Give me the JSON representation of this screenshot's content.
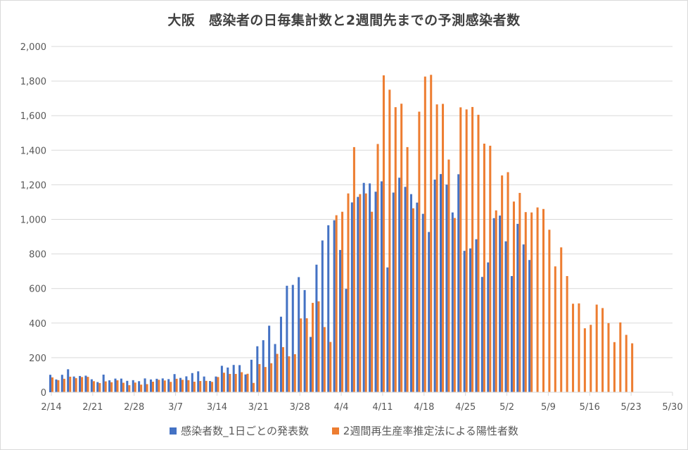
{
  "chart_data": {
    "type": "bar",
    "title": "大阪　感染者の日毎集計数と2週間先までの予測感染者数",
    "xlabel": "",
    "ylabel": "",
    "ylim": [
      0,
      2000
    ],
    "y_ticks": [
      "0",
      "200",
      "400",
      "600",
      "800",
      "1,000",
      "1,200",
      "1,400",
      "1,600",
      "1,800",
      "2,000"
    ],
    "x_tick_labels": [
      "2/14",
      "2/21",
      "2/28",
      "3/7",
      "3/14",
      "3/21",
      "3/28",
      "4/4",
      "4/11",
      "4/18",
      "4/25",
      "5/2",
      "5/9",
      "5/16",
      "5/23",
      "5/30"
    ],
    "x_start": "2/14",
    "x_end": "5/30",
    "grid": true,
    "legend_position": "bottom",
    "series": [
      {
        "name": "感染者数_1日ごとの発表数",
        "color": "#4472C4",
        "start": "2/14",
        "values": [
          101,
          74,
          101,
          133,
          91,
          94,
          96,
          75,
          59,
          102,
          69,
          79,
          79,
          66,
          70,
          64,
          80,
          74,
          78,
          80,
          76,
          105,
          83,
          92,
          111,
          121,
          91,
          65,
          91,
          153,
          143,
          158,
          157,
          103,
          188,
          266,
          301,
          385,
          279,
          437,
          616,
          621,
          666,
          591,
          320,
          738,
          878,
          966,
          995,
          823,
          598,
          1098,
          1130,
          1211,
          1208,
          1160,
          1220,
          722,
          1155,
          1241,
          1188,
          1146,
          1097,
          1032,
          927,
          1230,
          1262,
          1201,
          1040,
          1261,
          818,
          832,
          885,
          667,
          751,
          1007,
          1022,
          873,
          672,
          974,
          855,
          765
        ]
      },
      {
        "name": "2週間再生産率推定法による陽性者数",
        "color": "#ED7D31",
        "start": "2/14",
        "values": [
          86,
          70,
          78,
          90,
          82,
          88,
          89,
          64,
          53,
          63,
          58,
          69,
          55,
          41,
          56,
          44,
          47,
          61,
          72,
          68,
          60,
          78,
          72,
          70,
          61,
          65,
          66,
          60,
          88,
          113,
          106,
          106,
          116,
          107,
          54,
          163,
          146,
          168,
          222,
          261,
          208,
          220,
          427,
          428,
          517,
          526,
          377,
          291,
          1024,
          1044,
          1150,
          1418,
          1146,
          1150,
          1044,
          1436,
          1833,
          1750,
          1649,
          1669,
          1418,
          1064,
          1623,
          1826,
          1836,
          1665,
          1668,
          1346,
          1008,
          1648,
          1636,
          1650,
          1605,
          1438,
          1426,
          1052,
          1254,
          1273,
          1103,
          1153,
          1042,
          1040,
          1069,
          1060,
          940,
          728,
          838,
          672,
          512,
          514,
          370,
          390,
          507,
          487,
          400,
          290,
          404,
          332,
          283
        ]
      }
    ]
  }
}
